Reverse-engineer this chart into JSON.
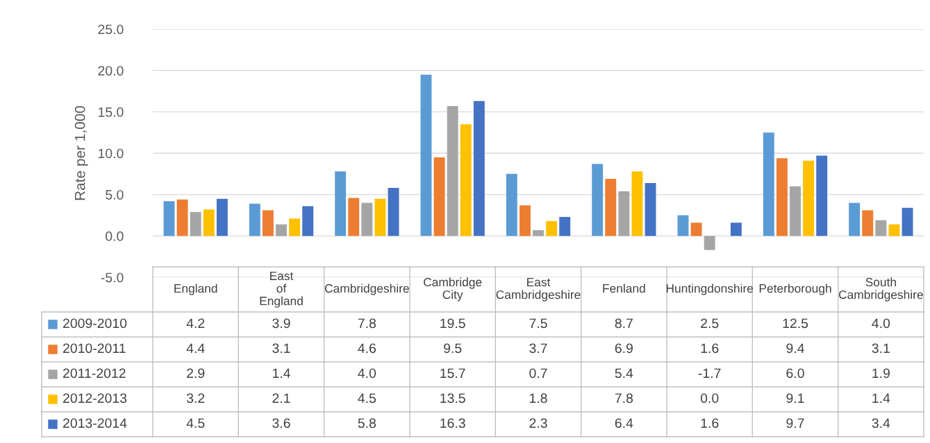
{
  "chart_data": {
    "type": "bar",
    "ylabel": "Rate per 1,000",
    "categories": [
      "England",
      "East of England",
      "Cambridgeshire",
      "Cambridge City",
      "East Cambridgeshire",
      "Fenland",
      "Huntingdonshire",
      "Peterborough",
      "South Cambridgeshire"
    ],
    "series": [
      {
        "name": "2009-2010",
        "color": "#5b9bd5",
        "values": [
          4.2,
          3.9,
          7.8,
          19.5,
          7.5,
          8.7,
          2.5,
          12.5,
          4.0
        ],
        "value_labels": [
          "4.2",
          "3.9",
          "7.8",
          "19.5",
          "7.5",
          "8.7",
          "2.5",
          "12.5",
          "4.0"
        ]
      },
      {
        "name": "2010-2011",
        "color": "#ed7d31",
        "values": [
          4.4,
          3.1,
          4.6,
          9.5,
          3.7,
          6.9,
          1.6,
          9.4,
          3.1
        ],
        "value_labels": [
          "4.4",
          "3.1",
          "4.6",
          "9.5",
          "3.7",
          "6.9",
          "1.6",
          "9.4",
          "3.1"
        ]
      },
      {
        "name": "2011-2012",
        "color": "#a5a5a5",
        "values": [
          2.9,
          1.4,
          4.0,
          15.7,
          0.7,
          5.4,
          -1.7,
          6.0,
          1.9
        ],
        "value_labels": [
          "2.9",
          "1.4",
          "4.0",
          "15.7",
          "0.7",
          "5.4",
          "-1.7",
          "6.0",
          "1.9"
        ]
      },
      {
        "name": "2012-2013",
        "color": "#ffc000",
        "values": [
          3.2,
          2.1,
          4.5,
          13.5,
          1.8,
          7.8,
          0.0,
          9.1,
          1.4
        ],
        "value_labels": [
          "3.2",
          "2.1",
          "4.5",
          "13.5",
          "1.8",
          "7.8",
          "0.0",
          "9.1",
          "1.4"
        ]
      },
      {
        "name": "2013-2014",
        "color": "#4472c4",
        "values": [
          4.5,
          3.6,
          5.8,
          16.3,
          2.3,
          6.4,
          1.6,
          9.7,
          3.4
        ],
        "value_labels": [
          "4.5",
          "3.6",
          "5.8",
          "16.3",
          "2.3",
          "6.4",
          "1.6",
          "9.7",
          "3.4"
        ]
      }
    ],
    "ylim": [
      -5,
      25
    ],
    "yticks": [
      {
        "value": -5,
        "label": "-5.0"
      },
      {
        "value": 0,
        "label": "0.0"
      },
      {
        "value": 5,
        "label": "5.0"
      },
      {
        "value": 10,
        "label": "10.0"
      },
      {
        "value": 15,
        "label": "15.0"
      },
      {
        "value": 20,
        "label": "20.0"
      },
      {
        "value": 25,
        "label": "25.0"
      }
    ],
    "grid": "y",
    "legend": "bottom"
  }
}
